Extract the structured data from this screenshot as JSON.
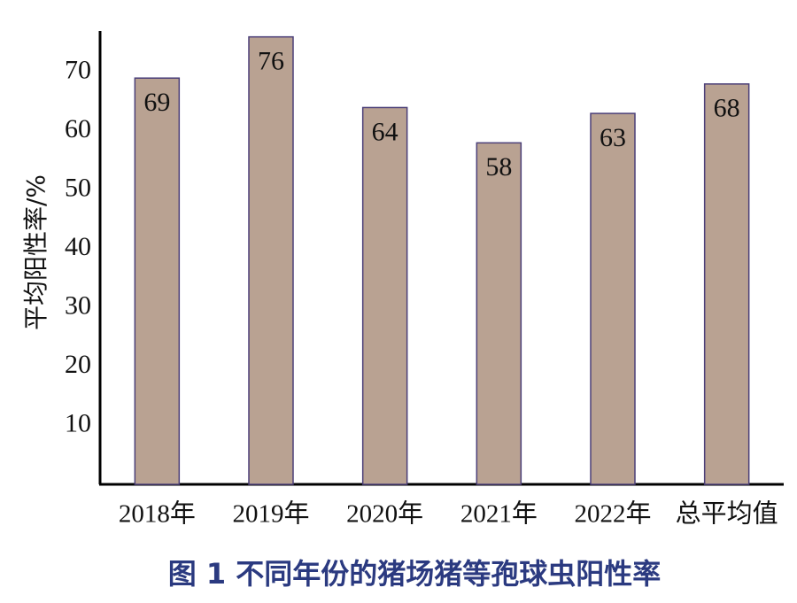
{
  "chart_data": {
    "type": "bar",
    "title": "图 1  不同年份的猪场猪等孢球虫阳性率",
    "y_label": "平均阳性率/%",
    "categories": [
      "2018年",
      "2019年",
      "2020年",
      "2021年",
      "2022年",
      "总平均值"
    ],
    "values": [
      69,
      76,
      64,
      58,
      63,
      68
    ],
    "color": "#b9a292",
    "edge_color": "#4b3f78",
    "ylim": [
      0,
      77
    ],
    "yticks": [
      10,
      20,
      30,
      40,
      50,
      60,
      70
    ],
    "grid": false
  }
}
